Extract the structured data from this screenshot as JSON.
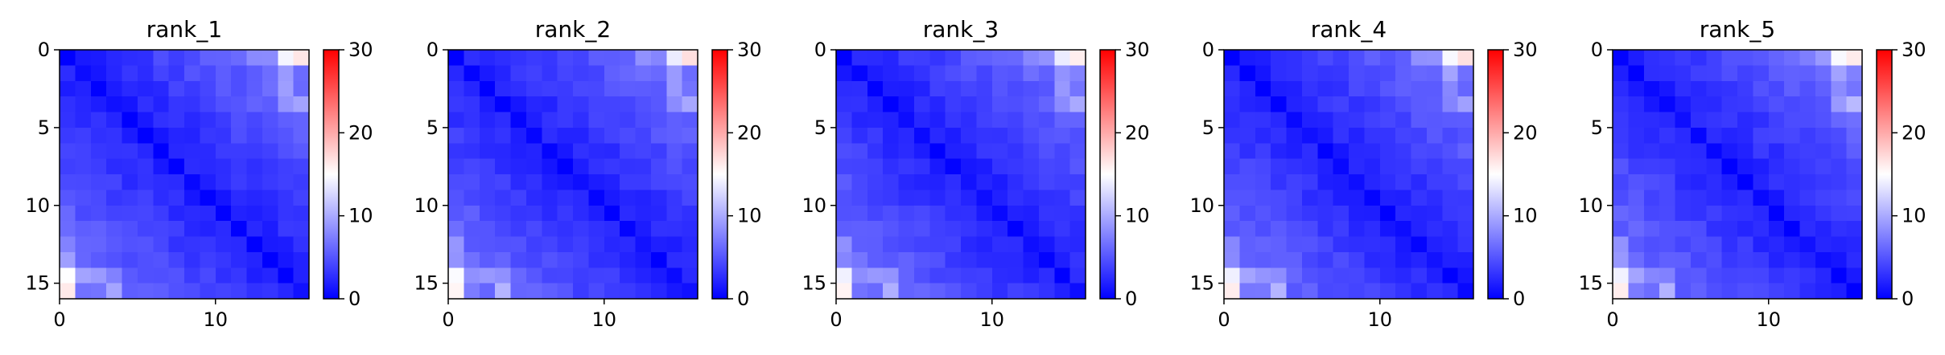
{
  "figure": {
    "background": "#ffffff"
  },
  "chart_data": [
    {
      "type": "heatmap",
      "title": "rank_1",
      "xlabel": "",
      "ylabel": "",
      "xticks": [
        0,
        10
      ],
      "yticks": [
        0,
        5,
        10,
        15
      ],
      "colorbar": {
        "ticks": [
          0,
          10,
          20,
          30
        ],
        "vmin": 0,
        "vmax": 30,
        "colors": [
          "#0000ff",
          "#ffffff",
          "#ff0000"
        ]
      }
    },
    {
      "type": "heatmap",
      "title": "rank_2",
      "xlabel": "",
      "ylabel": "",
      "xticks": [
        0,
        10
      ],
      "yticks": [
        0,
        5,
        10,
        15
      ],
      "colorbar": {
        "ticks": [
          0,
          10,
          20,
          30
        ],
        "vmin": 0,
        "vmax": 30,
        "colors": [
          "#0000ff",
          "#ffffff",
          "#ff0000"
        ]
      }
    },
    {
      "type": "heatmap",
      "title": "rank_3",
      "xlabel": "",
      "ylabel": "",
      "xticks": [
        0,
        10
      ],
      "yticks": [
        0,
        5,
        10,
        15
      ],
      "colorbar": {
        "ticks": [
          0,
          10,
          20,
          30
        ],
        "vmin": 0,
        "vmax": 30,
        "colors": [
          "#0000ff",
          "#ffffff",
          "#ff0000"
        ]
      }
    },
    {
      "type": "heatmap",
      "title": "rank_4",
      "xlabel": "",
      "ylabel": "",
      "xticks": [
        0,
        10
      ],
      "yticks": [
        0,
        5,
        10,
        15
      ],
      "colorbar": {
        "ticks": [
          0,
          10,
          20,
          30
        ],
        "vmin": 0,
        "vmax": 30,
        "colors": [
          "#0000ff",
          "#ffffff",
          "#ff0000"
        ]
      }
    },
    {
      "type": "heatmap",
      "title": "rank_5",
      "xlabel": "",
      "ylabel": "",
      "xticks": [
        0,
        10
      ],
      "yticks": [
        0,
        5,
        10,
        15
      ],
      "colorbar": {
        "ticks": [
          0,
          10,
          20,
          30
        ],
        "vmin": 0,
        "vmax": 30,
        "colors": [
          "#0000ff",
          "#ffffff",
          "#ff0000"
        ]
      }
    }
  ]
}
